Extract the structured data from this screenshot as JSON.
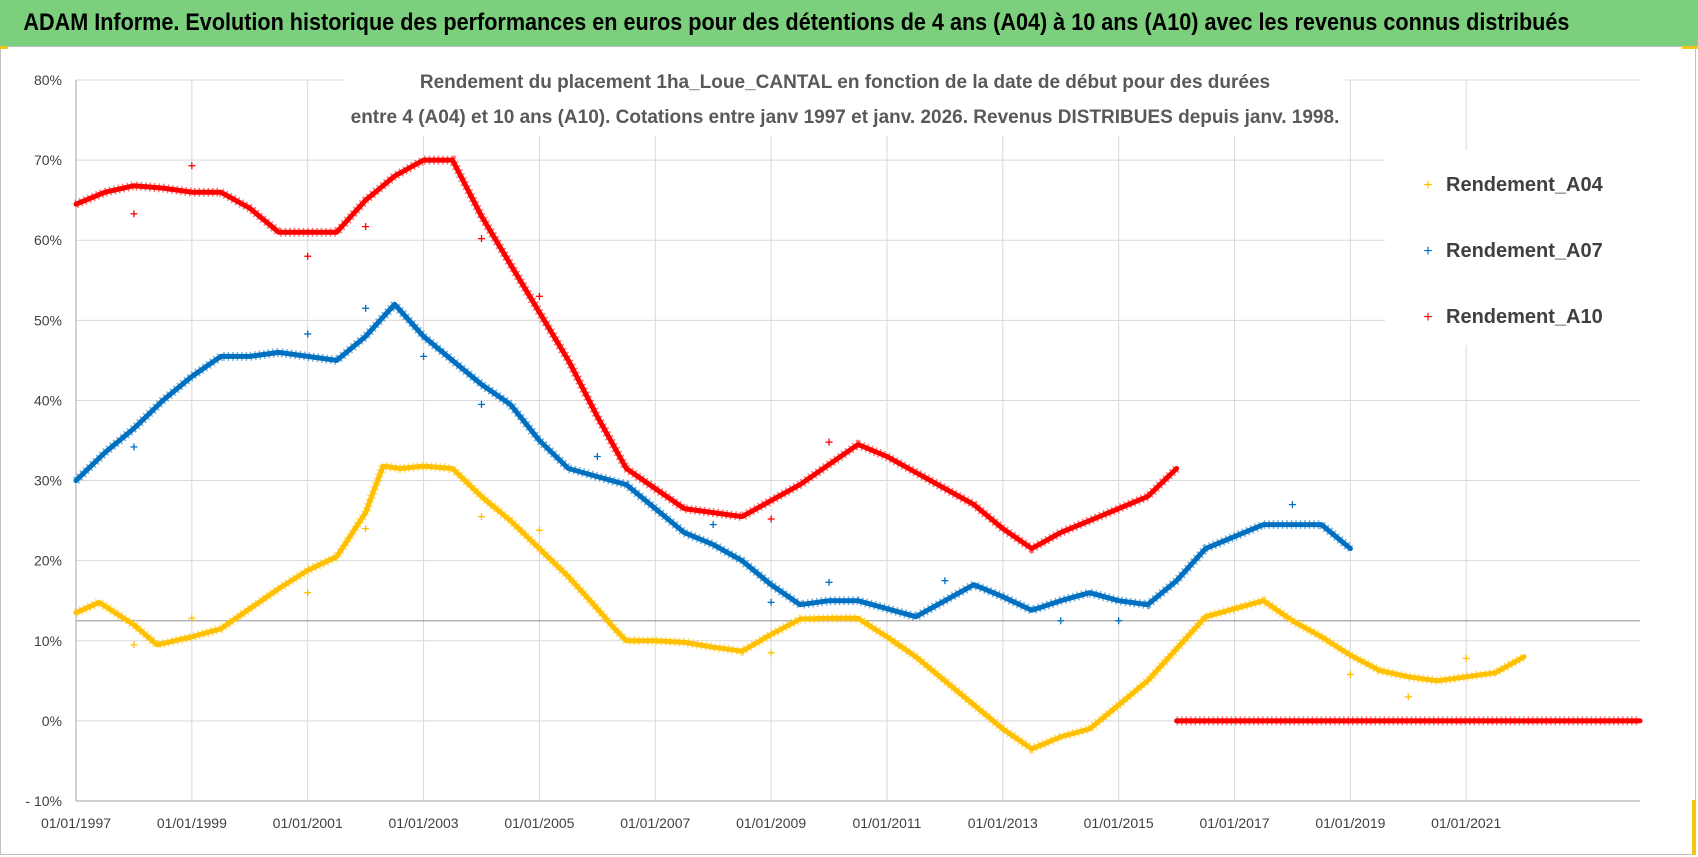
{
  "header": {
    "title": "ADAM Informe. Evolution historique des performances en euros pour des détentions de 4 ans (A04) à 10 ans (A10) avec les revenus connus distribués"
  },
  "colors": {
    "banner": "#7ccf7c",
    "grid": "#d9d9d9",
    "A04": "#ffc000",
    "A07": "#0070c0",
    "A10": "#ff0000"
  },
  "chart_data": {
    "type": "scatter",
    "title_lines": [
      "Rendement du placement 1ha_Loue_CANTAL en fonction de la date de début pour des durées",
      "entre 4 (A04) et 10 ans (A10). Cotations entre janv 1997 et janv. 2026. Revenus DISTRIBUES depuis janv. 1998."
    ],
    "xlabel": "",
    "ylabel": "",
    "xlim": [
      1997.0,
      2024.0
    ],
    "ylim": [
      -10,
      80
    ],
    "y_ticks": [
      -10,
      0,
      10,
      20,
      30,
      40,
      50,
      60,
      70,
      80
    ],
    "y_tick_labels": [
      "- 10%",
      "0%",
      "10%",
      "20%",
      "30%",
      "40%",
      "50%",
      "60%",
      "70%",
      "80%"
    ],
    "x_ticks": [
      1997,
      1999,
      2001,
      2003,
      2005,
      2007,
      2009,
      2011,
      2013,
      2015,
      2017,
      2019,
      2021
    ],
    "x_tick_labels": [
      "01/01/1997",
      "01/01/1999",
      "01/01/2001",
      "01/01/2003",
      "01/01/2005",
      "01/01/2007",
      "01/01/2009",
      "01/01/2011",
      "01/01/2013",
      "01/01/2015",
      "01/01/2017",
      "01/01/2019",
      "01/01/2021"
    ],
    "reference_line_y": 12.5,
    "legend": [
      "Rendement_A04",
      "Rendement_A07",
      "Rendement_A10"
    ],
    "legend_position": "top-right",
    "series": [
      {
        "name": "Rendement_A04",
        "color": "#ffc000",
        "x": [
          1997.0,
          1997.4,
          1998.0,
          1998.4,
          1999.0,
          1999.5,
          2000.0,
          2000.5,
          2001.0,
          2001.5,
          2002.0,
          2002.3,
          2002.6,
          2003.0,
          2003.5,
          2004.0,
          2004.5,
          2005.0,
          2005.5,
          2006.0,
          2006.3,
          2006.5,
          2007.0,
          2007.5,
          2008.0,
          2008.5,
          2009.0,
          2009.5,
          2010.0,
          2010.5,
          2011.0,
          2011.5,
          2012.0,
          2012.5,
          2013.0,
          2013.5,
          2014.0,
          2014.5,
          2015.0,
          2015.5,
          2016.0,
          2016.5,
          2017.0,
          2017.5,
          2018.0,
          2018.5,
          2019.0,
          2019.5,
          2020.0,
          2020.5,
          2021.0,
          2021.5,
          2022.0
        ],
        "values": [
          13.5,
          14.8,
          12,
          9.5,
          10.5,
          11.5,
          14,
          16.5,
          18.8,
          20.5,
          26,
          31.8,
          31.5,
          31.8,
          31.5,
          28,
          25,
          21.5,
          18,
          14,
          11.5,
          10,
          10,
          9.8,
          9.2,
          8.7,
          10.8,
          12.7,
          12.8,
          12.8,
          10.5,
          8,
          5,
          2,
          -1,
          -3.5,
          -2,
          -1,
          2,
          5,
          9,
          13,
          14,
          15,
          12.5,
          10.5,
          8.2,
          6.3,
          5.5,
          5,
          5.5,
          6,
          8
        ]
      },
      {
        "name": "Rendement_A07",
        "color": "#0070c0",
        "x": [
          1997.0,
          1997.5,
          1998.0,
          1998.5,
          1999.0,
          1999.5,
          2000.0,
          2000.5,
          2001.0,
          2001.5,
          2002.0,
          2002.5,
          2003.0,
          2003.5,
          2004.0,
          2004.5,
          2005.0,
          2005.5,
          2006.0,
          2006.5,
          2007.0,
          2007.5,
          2008.0,
          2008.5,
          2009.0,
          2009.5,
          2010.0,
          2010.5,
          2011.0,
          2011.5,
          2012.0,
          2012.5,
          2013.0,
          2013.5,
          2014.0,
          2014.5,
          2015.0,
          2015.5,
          2016.0,
          2016.5,
          2017.0,
          2017.5,
          2018.0,
          2018.5,
          2019.0
        ],
        "values": [
          30,
          33.5,
          36.5,
          40,
          43,
          45.5,
          45.5,
          46,
          45.5,
          45,
          48,
          52,
          48,
          45,
          42,
          39.5,
          35,
          31.5,
          30.5,
          29.5,
          26.5,
          23.5,
          22,
          20,
          17,
          14.5,
          15,
          15,
          14,
          13,
          15,
          17,
          15.5,
          13.8,
          15,
          16,
          15,
          14.5,
          17.5,
          21.5,
          23,
          24.5,
          24.5,
          24.5,
          21.5
        ]
      },
      {
        "name": "Rendement_A10",
        "color": "#ff0000",
        "x": [
          1997.0,
          1997.5,
          1998.0,
          1998.5,
          1999.0,
          1999.5,
          2000.0,
          2000.5,
          2001.0,
          2001.5,
          2002.0,
          2002.5,
          2003.0,
          2003.5,
          2004.0,
          2004.5,
          2005.0,
          2005.5,
          2006.0,
          2006.5,
          2007.0,
          2007.5,
          2008.0,
          2008.5,
          2009.0,
          2009.5,
          2010.0,
          2010.5,
          2011.0,
          2011.5,
          2012.0,
          2012.5,
          2013.0,
          2013.5,
          2014.0,
          2014.5,
          2015.0,
          2015.5,
          2016.0
        ],
        "values": [
          64.5,
          66,
          66.8,
          66.5,
          66,
          66,
          64,
          61,
          61,
          61,
          65,
          68,
          70,
          70,
          63,
          57,
          51,
          45,
          38,
          31.5,
          29,
          26.5,
          26,
          25.5,
          27.5,
          29.5,
          32,
          34.5,
          33,
          31,
          29,
          27,
          24,
          21.5,
          23.5,
          25,
          26.5,
          28,
          31.5
        ]
      },
      {
        "name": "Rendement_A10_zero",
        "color": "#ff0000",
        "x": [
          2016.0,
          2024.0
        ],
        "values": [
          0,
          0
        ]
      },
      {
        "name": "outliers_A04",
        "color": "#ffc000",
        "x": [
          1998.0,
          1999.0,
          2001.0,
          2002.0,
          2004.0,
          2005.0,
          2009.0,
          2020.0,
          2021.0,
          2019.0
        ],
        "values": [
          9.5,
          12.8,
          16,
          24,
          25.5,
          23.8,
          8.5,
          3,
          7.8,
          5.8
        ]
      },
      {
        "name": "outliers_A07",
        "color": "#0070c0",
        "x": [
          1998.0,
          2001.0,
          2002.0,
          2003.0,
          2004.0,
          2006.0,
          2008.0,
          2009.0,
          2010.0,
          2012.0,
          2014.0,
          2015.0,
          2018.0
        ],
        "values": [
          34.2,
          48.3,
          51.5,
          45.5,
          39.5,
          33,
          24.5,
          14.8,
          17.3,
          17.5,
          12.5,
          12.5,
          27
        ]
      },
      {
        "name": "outliers_A10",
        "color": "#ff0000",
        "x": [
          1998.0,
          1999.0,
          2001.0,
          2002.0,
          2004.0,
          2005.0,
          2009.0,
          2010.0
        ],
        "values": [
          63.3,
          69.3,
          58,
          61.7,
          60.2,
          53,
          25.2,
          34.8
        ]
      }
    ]
  }
}
